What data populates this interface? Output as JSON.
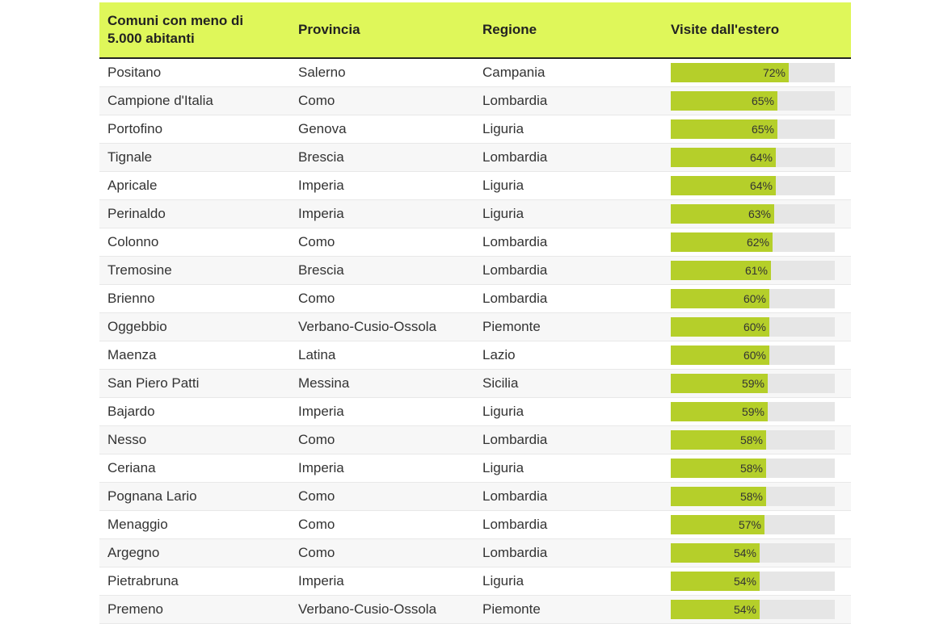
{
  "header": {
    "col_name": "Comuni con meno di\n5.000 abitanti",
    "col_province": "Provincia",
    "col_region": "Regione",
    "col_visits": "Visite dall'estero"
  },
  "colors": {
    "header_bg": "#dff75a",
    "bar_fill": "#b5cf2a",
    "bar_track": "#e6e6e6"
  },
  "chart_data": {
    "type": "table",
    "max_value": 100,
    "rows": [
      {
        "name": "Positano",
        "province": "Salerno",
        "region": "Campania",
        "value": 72,
        "label": "72%"
      },
      {
        "name": "Campione d'Italia",
        "province": "Como",
        "region": "Lombardia",
        "value": 65,
        "label": "65%"
      },
      {
        "name": "Portofino",
        "province": "Genova",
        "region": "Liguria",
        "value": 65,
        "label": "65%"
      },
      {
        "name": "Tignale",
        "province": "Brescia",
        "region": "Lombardia",
        "value": 64,
        "label": "64%"
      },
      {
        "name": "Apricale",
        "province": "Imperia",
        "region": "Liguria",
        "value": 64,
        "label": "64%"
      },
      {
        "name": "Perinaldo",
        "province": "Imperia",
        "region": "Liguria",
        "value": 63,
        "label": "63%"
      },
      {
        "name": "Colonno",
        "province": "Como",
        "region": "Lombardia",
        "value": 62,
        "label": "62%"
      },
      {
        "name": "Tremosine",
        "province": "Brescia",
        "region": "Lombardia",
        "value": 61,
        "label": "61%"
      },
      {
        "name": "Brienno",
        "province": "Como",
        "region": "Lombardia",
        "value": 60,
        "label": "60%"
      },
      {
        "name": "Oggebbio",
        "province": "Verbano-Cusio-Ossola",
        "region": "Piemonte",
        "value": 60,
        "label": "60%"
      },
      {
        "name": "Maenza",
        "province": "Latina",
        "region": "Lazio",
        "value": 60,
        "label": "60%"
      },
      {
        "name": "San Piero Patti",
        "province": "Messina",
        "region": "Sicilia",
        "value": 59,
        "label": "59%"
      },
      {
        "name": "Bajardo",
        "province": "Imperia",
        "region": "Liguria",
        "value": 59,
        "label": "59%"
      },
      {
        "name": "Nesso",
        "province": "Como",
        "region": "Lombardia",
        "value": 58,
        "label": "58%"
      },
      {
        "name": "Ceriana",
        "province": "Imperia",
        "region": "Liguria",
        "value": 58,
        "label": "58%"
      },
      {
        "name": "Pognana Lario",
        "province": "Como",
        "region": "Lombardia",
        "value": 58,
        "label": "58%"
      },
      {
        "name": "Menaggio",
        "province": "Como",
        "region": "Lombardia",
        "value": 57,
        "label": "57%"
      },
      {
        "name": "Argegno",
        "province": "Como",
        "region": "Lombardia",
        "value": 54,
        "label": "54%"
      },
      {
        "name": "Pietrabruna",
        "province": "Imperia",
        "region": "Liguria",
        "value": 54,
        "label": "54%"
      },
      {
        "name": "Premeno",
        "province": "Verbano-Cusio-Ossola",
        "region": "Piemonte",
        "value": 54,
        "label": "54%"
      }
    ]
  }
}
